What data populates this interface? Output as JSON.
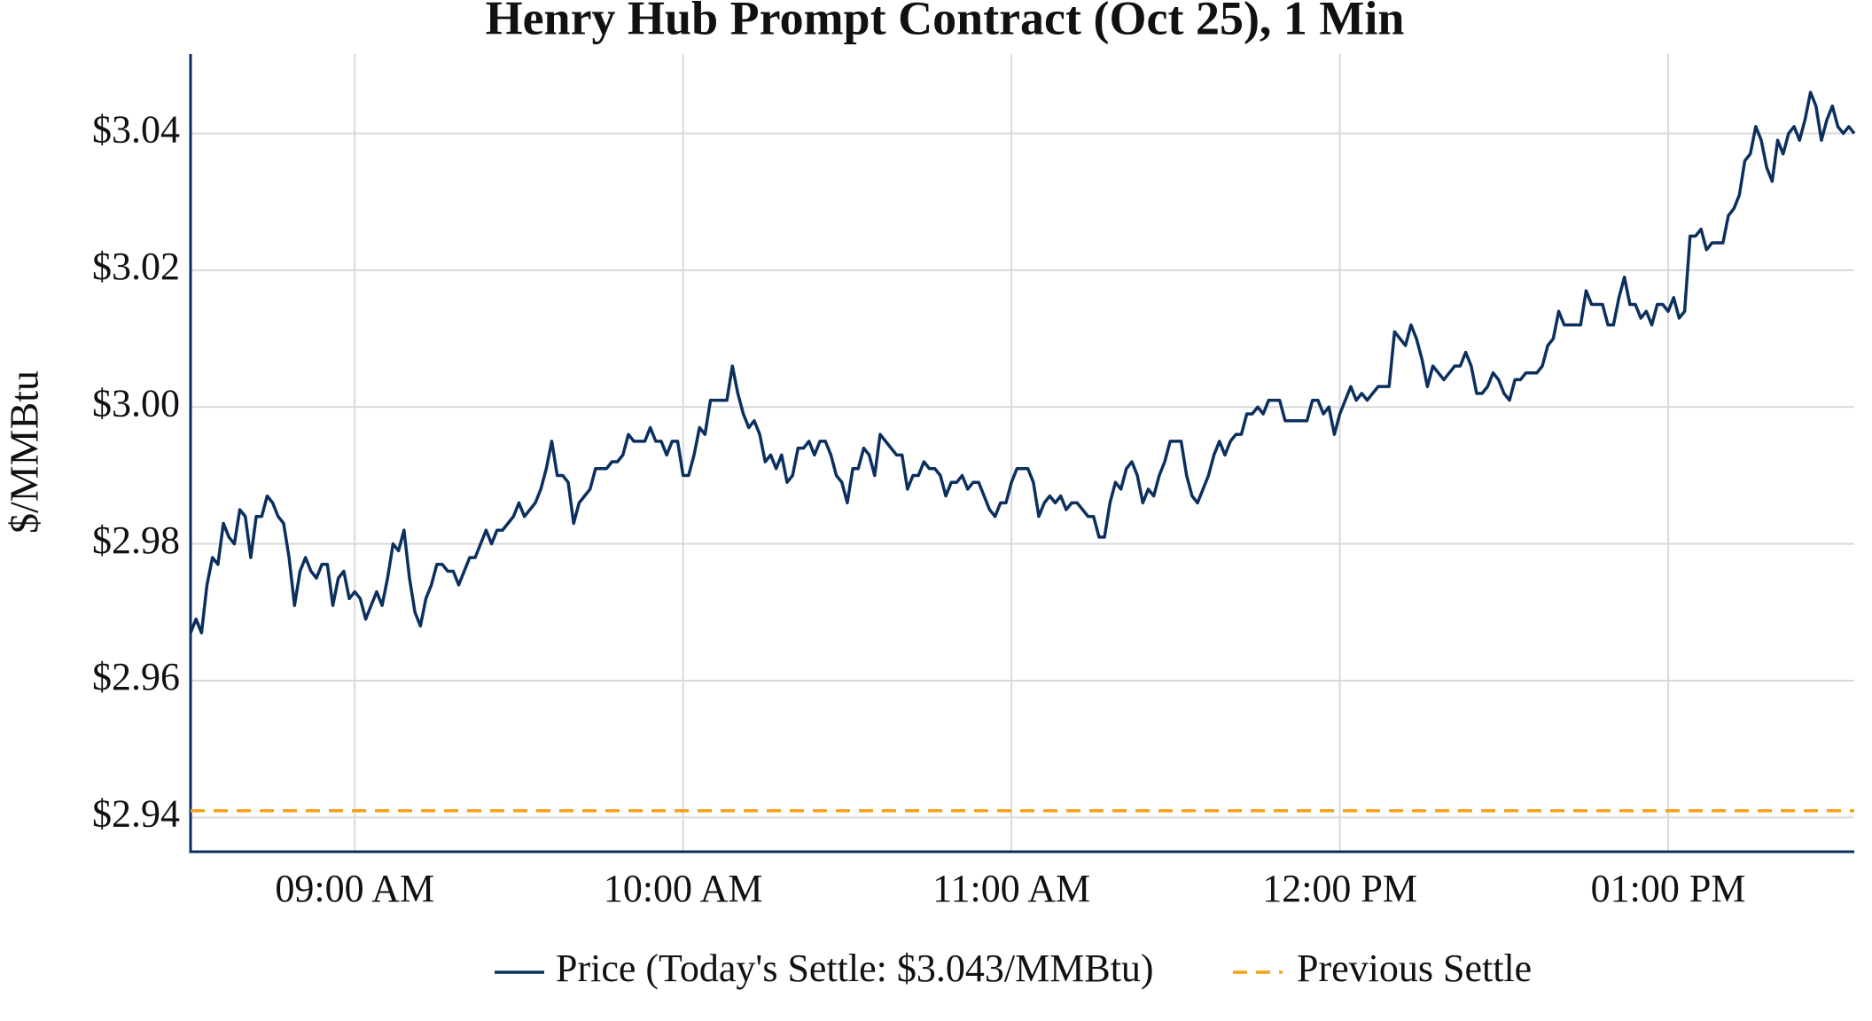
{
  "chart_data": {
    "type": "line",
    "title": "Henry Hub Prompt Contract (Oct 25), 1 Min",
    "ylabel": "$/MMBtu",
    "x": [
      "08:30",
      "08:31",
      "08:32",
      "08:33",
      "08:34",
      "08:35",
      "08:36",
      "08:37",
      "08:38",
      "08:39",
      "08:40",
      "08:41",
      "08:42",
      "08:43",
      "08:44",
      "08:45",
      "08:46",
      "08:47",
      "08:48",
      "08:49",
      "08:50",
      "08:51",
      "08:52",
      "08:53",
      "08:54",
      "08:55",
      "08:56",
      "08:57",
      "08:58",
      "08:59",
      "09:00",
      "09:01",
      "09:02",
      "09:03",
      "09:04",
      "09:05",
      "09:06",
      "09:07",
      "09:08",
      "09:09",
      "09:10",
      "09:11",
      "09:12",
      "09:13",
      "09:14",
      "09:15",
      "09:16",
      "09:17",
      "09:18",
      "09:19",
      "09:20",
      "09:21",
      "09:22",
      "09:23",
      "09:24",
      "09:25",
      "09:26",
      "09:27",
      "09:28",
      "09:29",
      "09:30",
      "09:31",
      "09:32",
      "09:33",
      "09:34",
      "09:35",
      "09:36",
      "09:37",
      "09:38",
      "09:39",
      "09:40",
      "09:41",
      "09:42",
      "09:43",
      "09:44",
      "09:45",
      "09:46",
      "09:47",
      "09:48",
      "09:49",
      "09:50",
      "09:51",
      "09:52",
      "09:53",
      "09:54",
      "09:55",
      "09:56",
      "09:57",
      "09:58",
      "09:59",
      "10:00",
      "10:01",
      "10:02",
      "10:03",
      "10:04",
      "10:05",
      "10:06",
      "10:07",
      "10:08",
      "10:09",
      "10:10",
      "10:11",
      "10:12",
      "10:13",
      "10:14",
      "10:15",
      "10:16",
      "10:17",
      "10:18",
      "10:19",
      "10:20",
      "10:21",
      "10:22",
      "10:23",
      "10:24",
      "10:25",
      "10:26",
      "10:27",
      "10:28",
      "10:29",
      "10:30",
      "10:31",
      "10:32",
      "10:33",
      "10:34",
      "10:35",
      "10:36",
      "10:37",
      "10:38",
      "10:39",
      "10:40",
      "10:41",
      "10:42",
      "10:43",
      "10:44",
      "10:45",
      "10:46",
      "10:47",
      "10:48",
      "10:49",
      "10:50",
      "10:51",
      "10:52",
      "10:53",
      "10:54",
      "10:55",
      "10:56",
      "10:57",
      "10:58",
      "10:59",
      "11:00",
      "11:01",
      "11:02",
      "11:03",
      "11:04",
      "11:05",
      "11:06",
      "11:07",
      "11:08",
      "11:09",
      "11:10",
      "11:11",
      "11:12",
      "11:13",
      "11:14",
      "11:15",
      "11:16",
      "11:17",
      "11:18",
      "11:19",
      "11:20",
      "11:21",
      "11:22",
      "11:23",
      "11:24",
      "11:25",
      "11:26",
      "11:27",
      "11:28",
      "11:29",
      "11:30",
      "11:31",
      "11:32",
      "11:33",
      "11:34",
      "11:35",
      "11:36",
      "11:37",
      "11:38",
      "11:39",
      "11:40",
      "11:41",
      "11:42",
      "11:43",
      "11:44",
      "11:45",
      "11:46",
      "11:47",
      "11:48",
      "11:49",
      "11:50",
      "11:51",
      "11:52",
      "11:53",
      "11:54",
      "11:55",
      "11:56",
      "11:57",
      "11:58",
      "11:59",
      "12:00",
      "12:01",
      "12:02",
      "12:03",
      "12:04",
      "12:05",
      "12:06",
      "12:07",
      "12:08",
      "12:09",
      "12:10",
      "12:11",
      "12:12",
      "12:13",
      "12:14",
      "12:15",
      "12:16",
      "12:17",
      "12:18",
      "12:19",
      "12:20",
      "12:21",
      "12:22",
      "12:23",
      "12:24",
      "12:25",
      "12:26",
      "12:27",
      "12:28",
      "12:29",
      "12:30",
      "12:31",
      "12:32",
      "12:33",
      "12:34",
      "12:35",
      "12:36",
      "12:37",
      "12:38",
      "12:39",
      "12:40",
      "12:41",
      "12:42",
      "12:43",
      "12:44",
      "12:45",
      "12:46",
      "12:47",
      "12:48",
      "12:49",
      "12:50",
      "12:51",
      "12:52",
      "12:53",
      "12:54",
      "12:55",
      "12:56",
      "12:57",
      "12:58",
      "12:59",
      "13:00",
      "13:01",
      "13:02",
      "13:03",
      "13:04",
      "13:05",
      "13:06",
      "13:07",
      "13:08",
      "13:09",
      "13:10",
      "13:11",
      "13:12",
      "13:13",
      "13:14",
      "13:15",
      "13:16",
      "13:17",
      "13:18",
      "13:19",
      "13:20",
      "13:21",
      "13:22",
      "13:23",
      "13:24",
      "13:25",
      "13:26",
      "13:27",
      "13:28",
      "13:29",
      "13:30",
      "13:31",
      "13:32",
      "13:33",
      "13:34"
    ],
    "series": [
      {
        "name": "Price (Today's Settle: $3.043/MMBtu)",
        "color": "#0b2f5e",
        "values": [
          2.967,
          2.969,
          2.967,
          2.974,
          2.978,
          2.977,
          2.983,
          2.981,
          2.98,
          2.985,
          2.984,
          2.978,
          2.984,
          2.984,
          2.987,
          2.986,
          2.984,
          2.983,
          2.978,
          2.971,
          2.976,
          2.978,
          2.976,
          2.975,
          2.977,
          2.977,
          2.971,
          2.975,
          2.976,
          2.972,
          2.973,
          2.972,
          2.969,
          2.971,
          2.973,
          2.971,
          2.975,
          2.98,
          2.979,
          2.982,
          2.975,
          2.97,
          2.968,
          2.972,
          2.974,
          2.977,
          2.977,
          2.976,
          2.976,
          2.974,
          2.976,
          2.978,
          2.978,
          2.98,
          2.982,
          2.98,
          2.982,
          2.982,
          2.983,
          2.984,
          2.986,
          2.984,
          2.985,
          2.986,
          2.988,
          2.991,
          2.995,
          2.99,
          2.99,
          2.989,
          2.983,
          2.986,
          2.987,
          2.988,
          2.991,
          2.991,
          2.991,
          2.992,
          2.992,
          2.993,
          2.996,
          2.995,
          2.995,
          2.995,
          2.997,
          2.995,
          2.995,
          2.993,
          2.995,
          2.995,
          2.99,
          2.99,
          2.993,
          2.997,
          2.996,
          3.001,
          3.001,
          3.001,
          3.001,
          3.006,
          3.002,
          2.999,
          2.997,
          2.998,
          2.996,
          2.992,
          2.993,
          2.991,
          2.993,
          2.989,
          2.99,
          2.994,
          2.994,
          2.995,
          2.993,
          2.995,
          2.995,
          2.993,
          2.99,
          2.989,
          2.986,
          2.991,
          2.991,
          2.994,
          2.993,
          2.99,
          2.996,
          2.995,
          2.994,
          2.993,
          2.993,
          2.988,
          2.99,
          2.99,
          2.992,
          2.991,
          2.991,
          2.99,
          2.987,
          2.989,
          2.989,
          2.99,
          2.988,
          2.989,
          2.989,
          2.987,
          2.985,
          2.984,
          2.986,
          2.986,
          2.989,
          2.991,
          2.991,
          2.991,
          2.989,
          2.984,
          2.986,
          2.987,
          2.986,
          2.987,
          2.985,
          2.986,
          2.986,
          2.985,
          2.984,
          2.984,
          2.981,
          2.981,
          2.986,
          2.989,
          2.988,
          2.991,
          2.992,
          2.99,
          2.986,
          2.988,
          2.987,
          2.99,
          2.992,
          2.995,
          2.995,
          2.995,
          2.99,
          2.987,
          2.986,
          2.988,
          2.99,
          2.993,
          2.995,
          2.993,
          2.995,
          2.996,
          2.996,
          2.999,
          2.999,
          3.0,
          2.999,
          3.001,
          3.001,
          3.001,
          2.998,
          2.998,
          2.998,
          2.998,
          2.998,
          3.001,
          3.001,
          2.999,
          3.0,
          2.996,
          2.999,
          3.001,
          3.003,
          3.001,
          3.002,
          3.001,
          3.002,
          3.003,
          3.003,
          3.003,
          3.011,
          3.01,
          3.009,
          3.012,
          3.01,
          3.007,
          3.003,
          3.006,
          3.005,
          3.004,
          3.005,
          3.006,
          3.006,
          3.008,
          3.006,
          3.002,
          3.002,
          3.003,
          3.005,
          3.004,
          3.002,
          3.001,
          3.004,
          3.004,
          3.005,
          3.005,
          3.005,
          3.006,
          3.009,
          3.01,
          3.014,
          3.012,
          3.012,
          3.012,
          3.012,
          3.017,
          3.015,
          3.015,
          3.015,
          3.012,
          3.012,
          3.016,
          3.019,
          3.015,
          3.015,
          3.013,
          3.014,
          3.012,
          3.015,
          3.015,
          3.014,
          3.016,
          3.013,
          3.014,
          3.025,
          3.025,
          3.026,
          3.023,
          3.024,
          3.024,
          3.024,
          3.028,
          3.029,
          3.031,
          3.036,
          3.037,
          3.041,
          3.039,
          3.035,
          3.033,
          3.039,
          3.037,
          3.04,
          3.041,
          3.039,
          3.042,
          3.046,
          3.044,
          3.039,
          3.042,
          3.044,
          3.041,
          3.04,
          3.041,
          3.04
        ]
      },
      {
        "name": "Previous Settle",
        "color": "#f5a01a",
        "dashed": true,
        "value": 2.941
      }
    ],
    "xlim": [
      "08:30",
      "13:34"
    ],
    "xticks": [
      {
        "value": "09:00",
        "label": "09:00 AM"
      },
      {
        "value": "10:00",
        "label": "10:00 AM"
      },
      {
        "value": "11:00",
        "label": "11:00 AM"
      },
      {
        "value": "12:00",
        "label": "12:00 PM"
      },
      {
        "value": "13:00",
        "label": "01:00 PM"
      }
    ],
    "ylim": [
      2.935,
      3.0516
    ],
    "yticks": [
      {
        "value": 2.94,
        "label": "$2.94"
      },
      {
        "value": 2.96,
        "label": "$2.96"
      },
      {
        "value": 2.98,
        "label": "$2.98"
      },
      {
        "value": 3.0,
        "label": "$3.00"
      },
      {
        "value": 3.02,
        "label": "$3.02"
      },
      {
        "value": 3.04,
        "label": "$3.04"
      }
    ],
    "grid": true,
    "legend": "bottom"
  }
}
